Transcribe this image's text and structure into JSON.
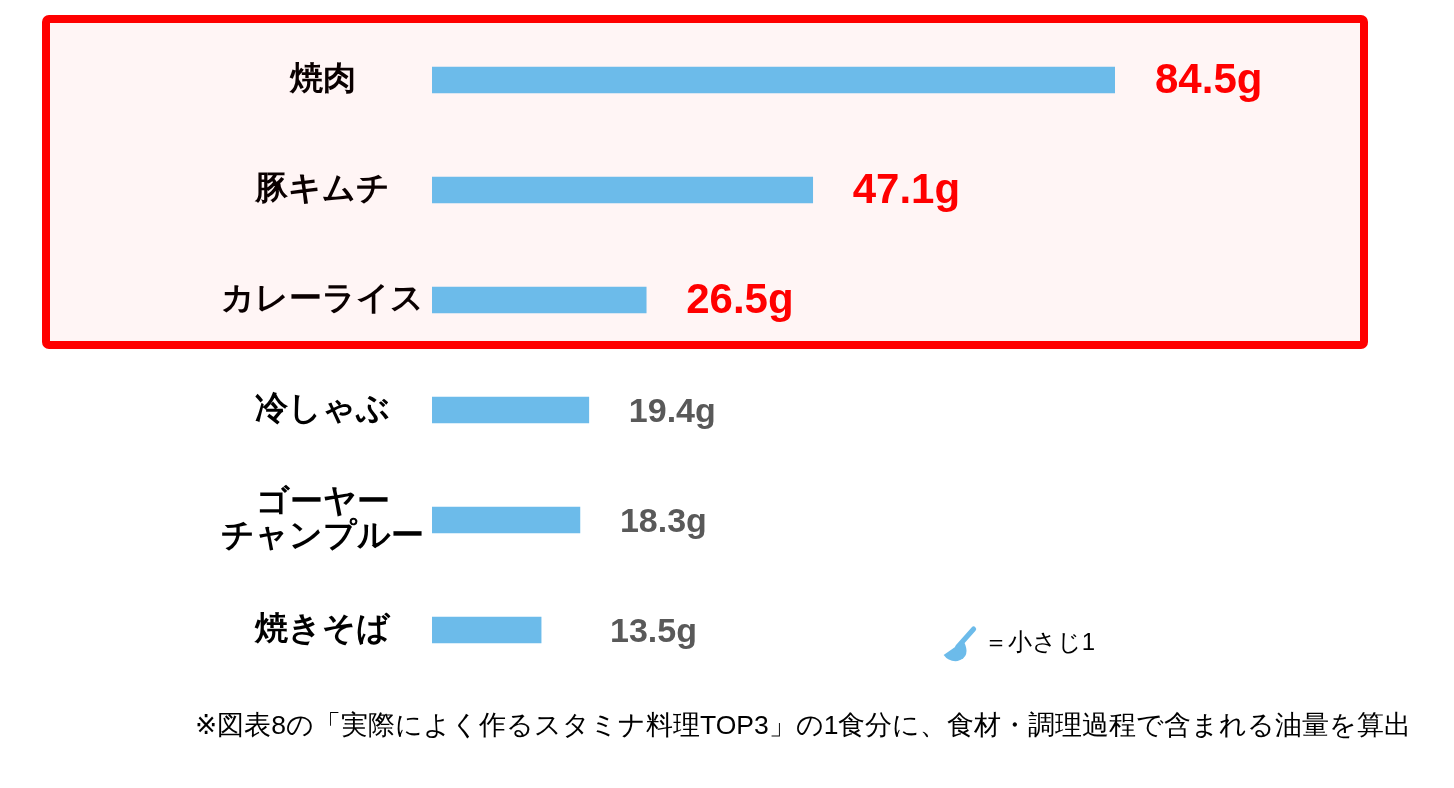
{
  "chart_data": {
    "type": "bar",
    "orientation": "horizontal",
    "categories": [
      "焼肉",
      "豚キムチ",
      "カレーライス",
      "冷しゃぶ",
      "ゴーヤーチャンプルー",
      "焼きそば"
    ],
    "series": [
      {
        "name": "＝小さじ1",
        "color": "#6cbbea",
        "values": [
          84.5,
          47.1,
          26.5,
          19.4,
          18.3,
          13.5
        ],
        "value_labels": [
          "84.5g",
          "47.1g",
          "26.5g",
          "19.4g",
          "18.3g",
          "13.5g"
        ]
      }
    ],
    "bands": [
      {
        "axis": "y",
        "from": "焼肉",
        "to": "カレーライス",
        "color": "#ff0000"
      }
    ],
    "legend": "bottom right",
    "grid": false,
    "tick_labels": "y",
    "annotations": [
      "※図表8の「実際によく作るスタミナ料理TOP3」の1食分に、食材・調理過程で含まれる油量を算出"
    ]
  }
}
